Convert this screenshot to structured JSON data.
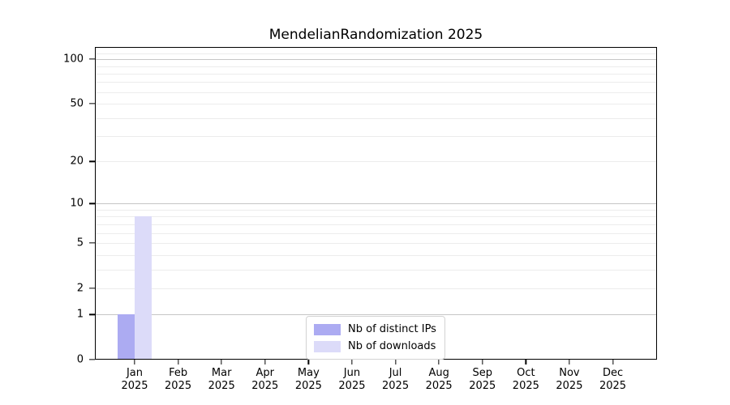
{
  "chart_data": {
    "type": "bar",
    "title": "MendelianRandomization 2025",
    "months": [
      "Jan",
      "Feb",
      "Mar",
      "Apr",
      "May",
      "Jun",
      "Jul",
      "Aug",
      "Sep",
      "Oct",
      "Nov",
      "Dec"
    ],
    "year": "2025",
    "categories": [
      "Jan 2025",
      "Feb 2025",
      "Mar 2025",
      "Apr 2025",
      "May 2025",
      "Jun 2025",
      "Jul 2025",
      "Aug 2025",
      "Sep 2025",
      "Oct 2025",
      "Nov 2025",
      "Dec 2025"
    ],
    "series": [
      {
        "name": "Nb of distinct IPs",
        "color": "#acabf2",
        "values": [
          1,
          0,
          0,
          0,
          0,
          0,
          0,
          0,
          0,
          0,
          0,
          0
        ]
      },
      {
        "name": "Nb of downloads",
        "color": "#dcdbf9",
        "values": [
          8,
          0,
          0,
          0,
          0,
          0,
          0,
          0,
          0,
          0,
          0,
          0
        ]
      }
    ],
    "y_scale": "log10(value+1)",
    "y_ticks": [
      0,
      1,
      2,
      5,
      10,
      20,
      50,
      100
    ],
    "ylim": [
      0,
      121
    ],
    "grid": "horizontal",
    "gridlines": {
      "minor": [
        2,
        3,
        4,
        5,
        6,
        7,
        8,
        9,
        20,
        30,
        40,
        50,
        60,
        70,
        80,
        90,
        110
      ],
      "major": [
        1,
        10,
        100
      ]
    },
    "legend_position": "lower center",
    "xlabel": "",
    "ylabel": ""
  },
  "colors": {
    "grid_minor": "#ececec",
    "grid_major": "#c6c6c6",
    "axis": "#000000",
    "legend_border": "#d3d3d3",
    "background": "#ffffff"
  }
}
